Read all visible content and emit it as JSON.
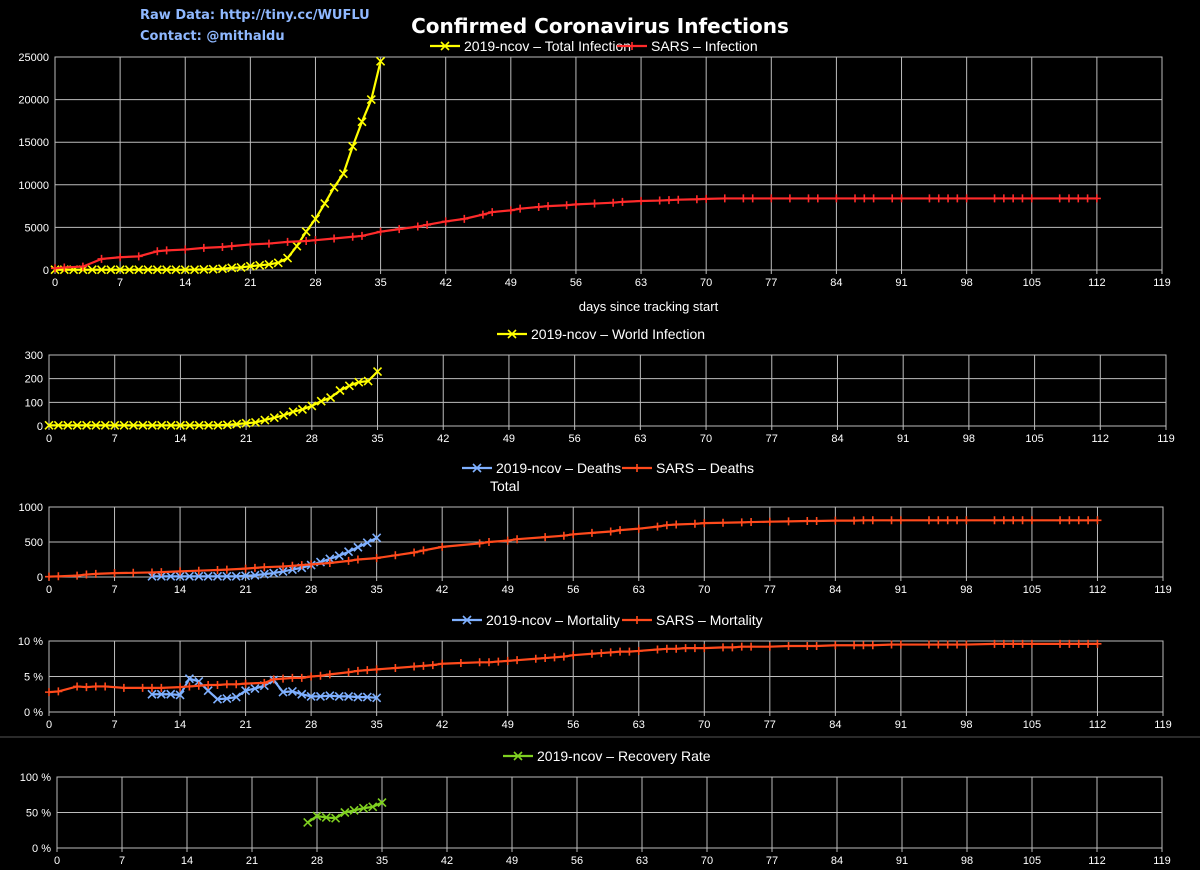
{
  "header": {
    "raw_data": "Raw Data: http://tiny.cc/WUFLU",
    "contact": "Contact: @mithaldu",
    "title": "Confirmed Coronavirus Infections"
  },
  "colors": {
    "background": "#000000",
    "grid": "#bdbdbd",
    "ncov_total": "#ffff00",
    "ncov_world": "#ffff00",
    "sars": "#ff2b2b",
    "sars_deaths": "#ff4a1c",
    "ncov_deaths": "#7fb0ff",
    "ncov_recovery": "#7fd020"
  },
  "chart_data": [
    {
      "id": "infections",
      "type": "line",
      "title": "",
      "xlabel": "days since tracking start",
      "ylabel": "",
      "xlim": [
        0,
        119
      ],
      "ylim": [
        0,
        25000
      ],
      "xticks": [
        "0",
        "7",
        "14",
        "21",
        "28",
        "35",
        "42",
        "49",
        "56",
        "63",
        "70",
        "77",
        "84",
        "91",
        "98",
        "105",
        "112",
        "119"
      ],
      "yticks": [
        "0",
        "5000",
        "10000",
        "15000",
        "20000",
        "25000"
      ],
      "legend_position": "top-center",
      "series": [
        {
          "name": "2019-ncov – Total Infection",
          "marker": "x",
          "color": "#ffff00",
          "x": [
            0,
            1,
            2,
            3,
            4,
            5,
            6,
            7,
            8,
            9,
            10,
            11,
            12,
            13,
            14,
            15,
            16,
            17,
            18,
            19,
            20,
            21,
            22,
            23,
            24,
            25,
            26,
            27,
            28,
            29,
            30,
            31,
            32,
            33,
            34,
            35
          ],
          "y": [
            30,
            30,
            30,
            30,
            30,
            30,
            30,
            30,
            30,
            30,
            30,
            30,
            30,
            30,
            30,
            40,
            60,
            100,
            150,
            250,
            300,
            450,
            550,
            650,
            850,
            1400,
            2800,
            4500,
            6000,
            7800,
            9700,
            11300,
            14500,
            17400,
            20000,
            24500
          ]
        },
        {
          "name": "SARS – Infection",
          "marker": "+",
          "color": "#ff2b2b",
          "x": [
            0,
            1,
            3,
            5,
            7,
            9,
            11,
            12,
            14,
            16,
            18,
            19,
            21,
            23,
            25,
            27,
            28,
            30,
            32,
            33,
            35,
            37,
            39,
            40,
            42,
            44,
            46,
            47,
            49,
            50,
            52,
            53,
            55,
            56,
            58,
            60,
            61,
            63,
            65,
            66,
            67,
            69,
            70,
            72,
            74,
            75,
            77,
            79,
            81,
            82,
            84,
            86,
            87,
            88,
            90,
            91,
            94,
            95,
            96,
            97,
            98,
            101,
            102,
            103,
            104,
            105,
            108,
            109,
            110,
            111,
            112
          ],
          "y": [
            200,
            300,
            400,
            1300,
            1500,
            1600,
            2200,
            2300,
            2400,
            2600,
            2700,
            2800,
            3000,
            3100,
            3300,
            3400,
            3500,
            3700,
            3900,
            4000,
            4500,
            4800,
            5100,
            5300,
            5700,
            6000,
            6500,
            6800,
            7000,
            7200,
            7400,
            7500,
            7600,
            7700,
            7800,
            7900,
            8000,
            8100,
            8150,
            8200,
            8250,
            8300,
            8350,
            8400,
            8400,
            8400,
            8400,
            8400,
            8400,
            8400,
            8400,
            8400,
            8400,
            8400,
            8400,
            8400,
            8400,
            8400,
            8400,
            8400,
            8400,
            8400,
            8400,
            8400,
            8400,
            8400,
            8400,
            8400,
            8400,
            8400,
            8400
          ]
        }
      ]
    },
    {
      "id": "world",
      "type": "line",
      "title": "",
      "xlabel": "",
      "ylabel": "",
      "xlim": [
        0,
        119
      ],
      "ylim": [
        0,
        300
      ],
      "xticks": [
        "0",
        "7",
        "14",
        "21",
        "28",
        "35",
        "42",
        "49",
        "56",
        "63",
        "70",
        "77",
        "84",
        "91",
        "98",
        "105",
        "112",
        "119"
      ],
      "yticks": [
        "0",
        "100",
        "200",
        "300"
      ],
      "legend_position": "top-center",
      "series": [
        {
          "name": "2019-ncov – World Infection",
          "marker": "x",
          "color": "#ffff00",
          "x": [
            0,
            1,
            2,
            3,
            4,
            5,
            6,
            7,
            8,
            9,
            10,
            11,
            12,
            13,
            14,
            15,
            16,
            17,
            18,
            19,
            20,
            21,
            22,
            23,
            24,
            25,
            26,
            27,
            28,
            29,
            30,
            31,
            32,
            33,
            34,
            35
          ],
          "y": [
            3,
            3,
            3,
            3,
            3,
            3,
            3,
            3,
            3,
            3,
            3,
            3,
            3,
            3,
            3,
            3,
            3,
            3,
            3,
            5,
            8,
            12,
            15,
            25,
            35,
            45,
            60,
            70,
            85,
            105,
            120,
            150,
            170,
            185,
            190,
            230
          ]
        }
      ]
    },
    {
      "id": "deaths",
      "type": "line",
      "title": "",
      "xlabel": "",
      "ylabel": "",
      "xlim": [
        0,
        119
      ],
      "ylim": [
        0,
        1000
      ],
      "xticks": [
        "0",
        "7",
        "14",
        "21",
        "28",
        "35",
        "42",
        "49",
        "56",
        "63",
        "70",
        "77",
        "84",
        "91",
        "98",
        "105",
        "112",
        "119"
      ],
      "yticks": [
        "0",
        "500",
        "1000"
      ],
      "legend_position": "top-center",
      "series": [
        {
          "name": "2019-ncov – Deaths Total",
          "marker": "x",
          "color": "#7fb0ff",
          "x": [
            11,
            12,
            13,
            14,
            15,
            16,
            17,
            18,
            19,
            20,
            21,
            22,
            23,
            24,
            25,
            26,
            27,
            28,
            29,
            30,
            31,
            32,
            33,
            34,
            35
          ],
          "y": [
            9,
            9,
            9,
            9,
            9,
            9,
            9,
            9,
            9,
            9,
            17,
            25,
            41,
            56,
            80,
            106,
            132,
            170,
            213,
            259,
            304,
            361,
            425,
            490,
            560
          ]
        },
        {
          "name": "SARS – Deaths",
          "marker": "+",
          "color": "#ff4a1c",
          "x": [
            0,
            1,
            3,
            4,
            5,
            7,
            9,
            11,
            12,
            14,
            16,
            18,
            19,
            21,
            22,
            23,
            25,
            26,
            27,
            28,
            30,
            32,
            33,
            35,
            37,
            39,
            40,
            42,
            46,
            47,
            49,
            50,
            53,
            55,
            56,
            58,
            60,
            61,
            63,
            65,
            66,
            67,
            69,
            70,
            72,
            74,
            75,
            77,
            79,
            81,
            82,
            84,
            86,
            87,
            88,
            90,
            91,
            94,
            95,
            96,
            97,
            98,
            101,
            102,
            103,
            104,
            105,
            108,
            109,
            110,
            111,
            112
          ],
          "y": [
            5,
            10,
            20,
            35,
            45,
            55,
            60,
            65,
            70,
            80,
            90,
            100,
            105,
            120,
            130,
            140,
            150,
            160,
            170,
            180,
            200,
            230,
            250,
            270,
            310,
            350,
            380,
            430,
            480,
            500,
            520,
            540,
            570,
            590,
            610,
            630,
            650,
            670,
            690,
            720,
            740,
            750,
            760,
            770,
            775,
            780,
            785,
            790,
            795,
            800,
            800,
            805,
            805,
            810,
            810,
            810,
            810,
            810,
            810,
            810,
            810,
            810,
            810,
            810,
            810,
            810,
            810,
            810,
            810,
            810,
            810,
            810
          ]
        }
      ]
    },
    {
      "id": "mortality",
      "type": "line",
      "title": "",
      "xlabel": "",
      "ylabel": "",
      "xlim": [
        0,
        119
      ],
      "ylim": [
        0,
        10
      ],
      "y_unit": "%",
      "xticks": [
        "0",
        "7",
        "14",
        "21",
        "28",
        "35",
        "42",
        "49",
        "56",
        "63",
        "70",
        "77",
        "84",
        "91",
        "98",
        "105",
        "112",
        "119"
      ],
      "yticks": [
        "0 %",
        "5 %",
        "10 %"
      ],
      "legend_position": "top-center",
      "series": [
        {
          "name": "2019-ncov – Mortality",
          "marker": "x",
          "color": "#7fb0ff",
          "x": [
            11,
            12,
            13,
            14,
            15,
            16,
            17,
            18,
            19,
            20,
            21,
            22,
            23,
            24,
            25,
            26,
            27,
            28,
            29,
            30,
            31,
            32,
            33,
            34,
            35
          ],
          "y": [
            2.5,
            2.5,
            2.5,
            2.4,
            4.7,
            4.3,
            3.0,
            1.8,
            1.9,
            2.1,
            3.0,
            3.3,
            3.7,
            4.5,
            2.8,
            2.9,
            2.5,
            2.2,
            2.2,
            2.3,
            2.2,
            2.2,
            2.1,
            2.1,
            2.0
          ]
        },
        {
          "name": "SARS – Mortality",
          "marker": "+",
          "color": "#ff4a1c",
          "x": [
            0,
            1,
            3,
            4,
            5,
            6,
            8,
            10,
            11,
            12,
            14,
            15,
            16,
            17,
            18,
            19,
            20,
            21,
            23,
            24,
            25,
            26,
            27,
            28,
            29,
            30,
            32,
            33,
            34,
            35,
            37,
            39,
            40,
            41,
            42,
            44,
            46,
            47,
            48,
            49,
            50,
            52,
            53,
            54,
            55,
            56,
            58,
            59,
            60,
            61,
            62,
            63,
            65,
            66,
            67,
            68,
            69,
            70,
            72,
            73,
            74,
            75,
            77,
            79,
            81,
            82,
            84,
            86,
            87,
            88,
            90,
            91,
            94,
            95,
            96,
            97,
            98,
            101,
            102,
            103,
            104,
            105,
            108,
            109,
            110,
            111,
            112
          ],
          "y": [
            2.8,
            2.9,
            3.6,
            3.5,
            3.6,
            3.6,
            3.4,
            3.4,
            3.4,
            3.4,
            3.5,
            3.6,
            3.7,
            3.8,
            3.8,
            3.9,
            3.9,
            4.0,
            4.1,
            4.6,
            4.7,
            4.8,
            4.8,
            5.0,
            5.1,
            5.3,
            5.6,
            5.8,
            5.9,
            6.0,
            6.2,
            6.4,
            6.5,
            6.6,
            6.8,
            6.9,
            7.0,
            7.0,
            7.1,
            7.2,
            7.3,
            7.5,
            7.6,
            7.7,
            7.8,
            8.0,
            8.2,
            8.3,
            8.4,
            8.5,
            8.5,
            8.6,
            8.8,
            8.9,
            8.9,
            9.0,
            9.0,
            9.0,
            9.1,
            9.1,
            9.2,
            9.2,
            9.2,
            9.3,
            9.3,
            9.3,
            9.4,
            9.4,
            9.4,
            9.4,
            9.5,
            9.5,
            9.5,
            9.5,
            9.5,
            9.5,
            9.5,
            9.6,
            9.6,
            9.6,
            9.6,
            9.6,
            9.6,
            9.6,
            9.6,
            9.6,
            9.6
          ]
        }
      ]
    },
    {
      "id": "recovery",
      "type": "line",
      "title": "",
      "xlabel": "",
      "ylabel": "",
      "xlim": [
        0,
        119
      ],
      "ylim": [
        0,
        100
      ],
      "y_unit": "%",
      "xticks": [
        "0",
        "7",
        "14",
        "21",
        "28",
        "35",
        "42",
        "49",
        "56",
        "63",
        "70",
        "77",
        "84",
        "91",
        "98",
        "105",
        "112",
        "119"
      ],
      "yticks": [
        "0 %",
        "50 %",
        "100 %"
      ],
      "legend_position": "top-center",
      "series": [
        {
          "name": "2019-ncov – Recovery Rate",
          "marker": "x",
          "color": "#7fd020",
          "x": [
            27,
            28,
            29,
            30,
            31,
            32,
            33,
            34,
            35
          ],
          "y": [
            36,
            45,
            43,
            42,
            50,
            53,
            56,
            58,
            64
          ]
        }
      ]
    }
  ]
}
